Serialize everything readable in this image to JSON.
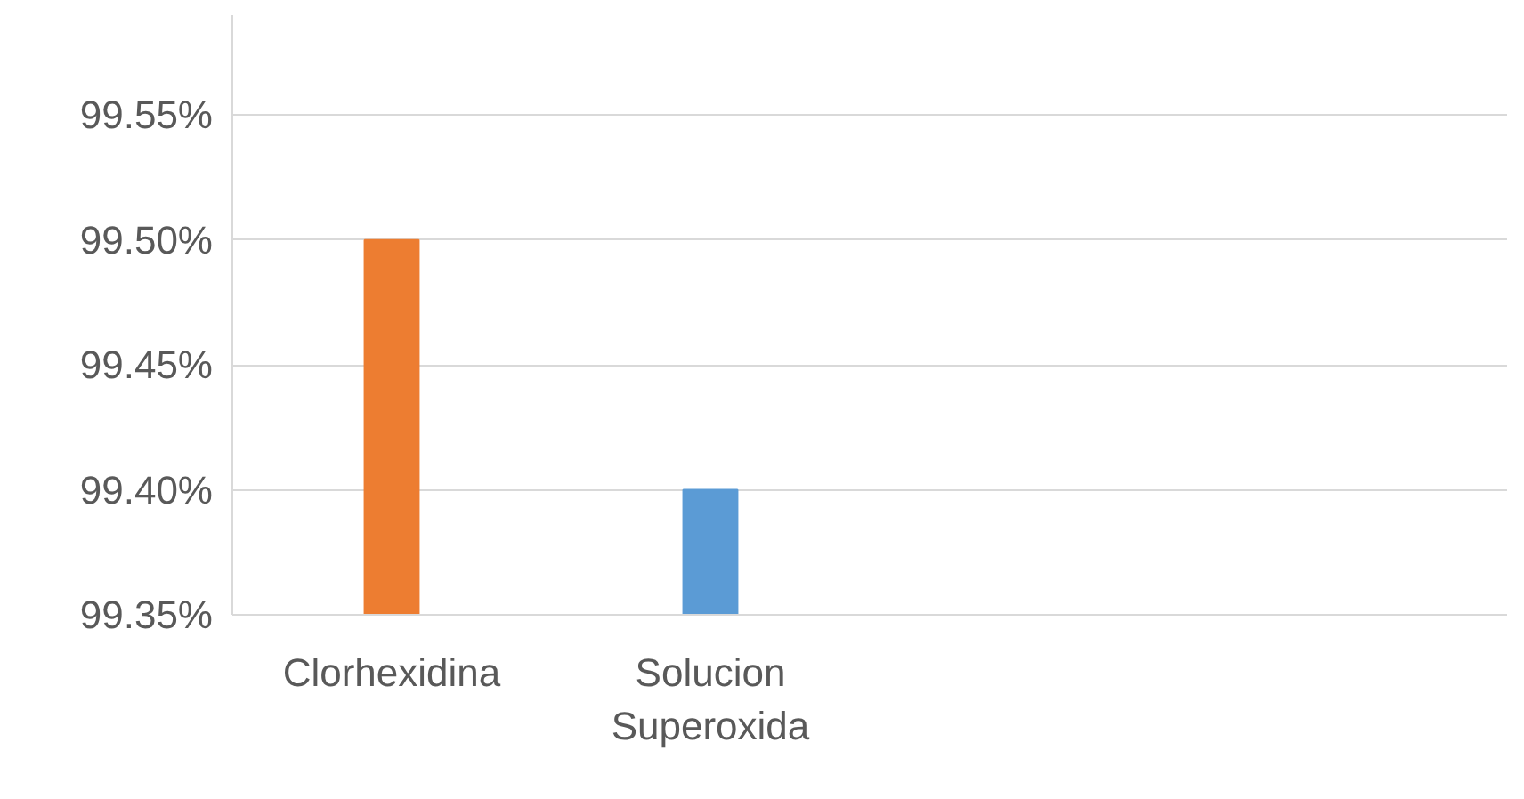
{
  "chart_data": {
    "type": "bar",
    "categories": [
      "Clorhexidina",
      "Solucion Superoxida",
      null,
      null
    ],
    "values": [
      99.5,
      99.4,
      null,
      null
    ],
    "colors": [
      "#ed7d31",
      "#5b9bd5",
      null,
      null
    ],
    "ylim": [
      99.35,
      99.59
    ],
    "yticks": [
      {
        "value": 99.35,
        "label": "99.35%"
      },
      {
        "value": 99.4,
        "label": "99.40%"
      },
      {
        "value": 99.45,
        "label": "99.45%"
      },
      {
        "value": 99.5,
        "label": "99.50%"
      },
      {
        "value": 99.55,
        "label": "99.55%"
      }
    ],
    "grid": "y"
  }
}
